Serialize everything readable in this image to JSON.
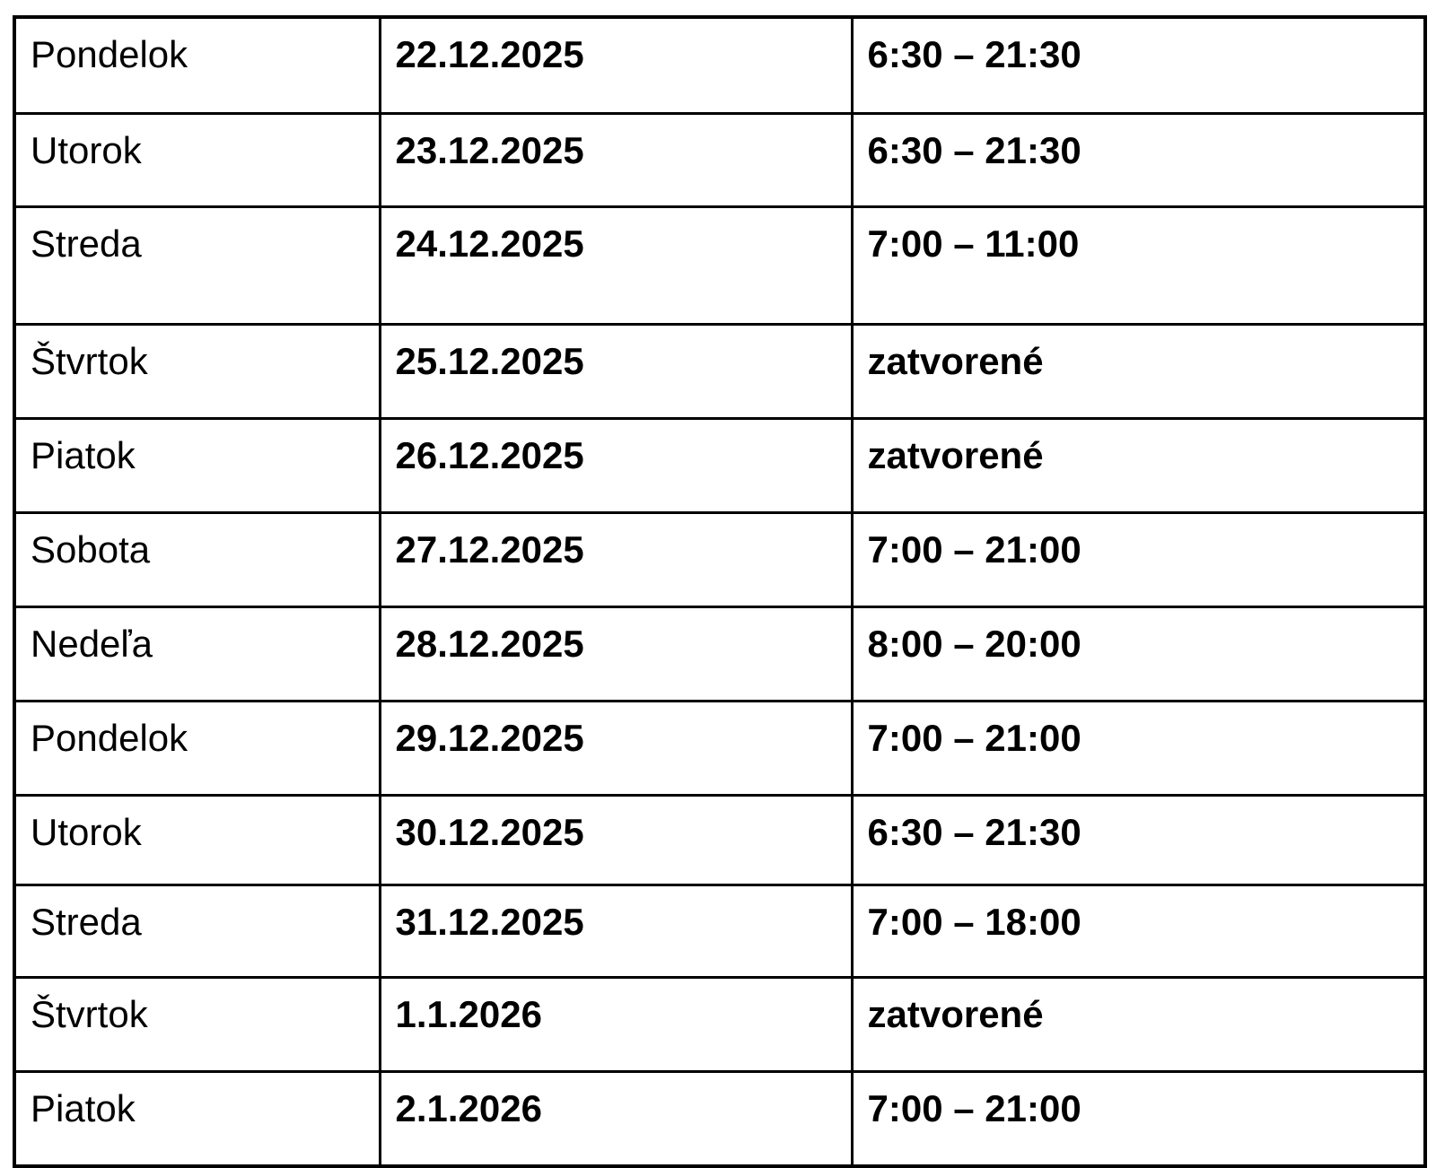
{
  "colors": {
    "background": "#ffffff",
    "border": "#000000",
    "text": "#000000"
  },
  "table": {
    "name": "opening-hours-schedule",
    "columns": [
      "day",
      "date",
      "hours"
    ],
    "rows": [
      {
        "day": "Pondelok",
        "date": "22.12.2025",
        "hours": "6:30 – 21:30"
      },
      {
        "day": "Utorok",
        "date": "23.12.2025",
        "hours": "6:30 – 21:30"
      },
      {
        "day": "Streda",
        "date": "24.12.2025",
        "hours": "7:00 – 11:00"
      },
      {
        "day": "Štvrtok",
        "date": "25.12.2025",
        "hours": "zatvorené"
      },
      {
        "day": "Piatok",
        "date": "26.12.2025",
        "hours": "zatvorené"
      },
      {
        "day": "Sobota",
        "date": "27.12.2025",
        "hours": "7:00 – 21:00"
      },
      {
        "day": "Nedeľa",
        "date": "28.12.2025",
        "hours": "8:00 – 20:00"
      },
      {
        "day": "Pondelok",
        "date": "29.12.2025",
        "hours": "7:00 – 21:00"
      },
      {
        "day": "Utorok",
        "date": "30.12.2025",
        "hours": "6:30 – 21:30"
      },
      {
        "day": "Streda",
        "date": "31.12.2025",
        "hours": "7:00 – 18:00"
      },
      {
        "day": "Štvrtok",
        "date": "1.1.2026",
        "hours": "zatvorené"
      },
      {
        "day": "Piatok",
        "date": "2.1.2026",
        "hours": "7:00 – 21:00"
      }
    ]
  }
}
